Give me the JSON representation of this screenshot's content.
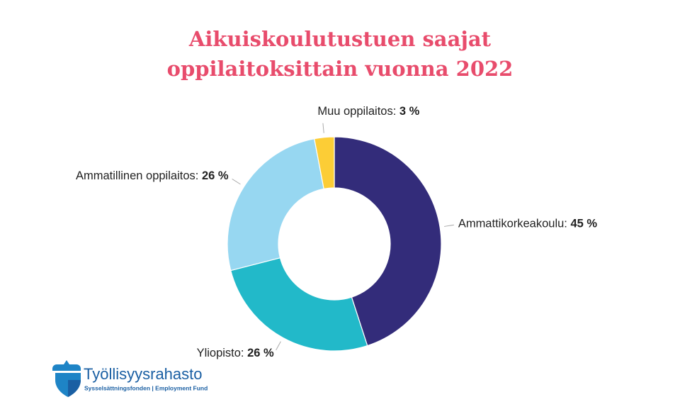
{
  "chart_data": {
    "type": "donut",
    "title": "Aikuiskoulutustuen saajat\noppilaitoksittain vuonna 2022",
    "categories": [
      "Ammattikorkeakoulu:",
      "Yliopisto:",
      "Ammatillinen oppilaitos:",
      "Muu oppilaitos:"
    ],
    "values": [
      45,
      26,
      26,
      3
    ],
    "value_labels": [
      "45 %",
      "26 %",
      "26 %",
      "3 %"
    ],
    "colors": [
      "#332c7a",
      "#22b9c9",
      "#97d7f1",
      "#fccd36"
    ]
  },
  "logo": {
    "name": "Työllisyysrahasto",
    "subtitle": "Sysselsättningsfonden | Employment Fund"
  }
}
